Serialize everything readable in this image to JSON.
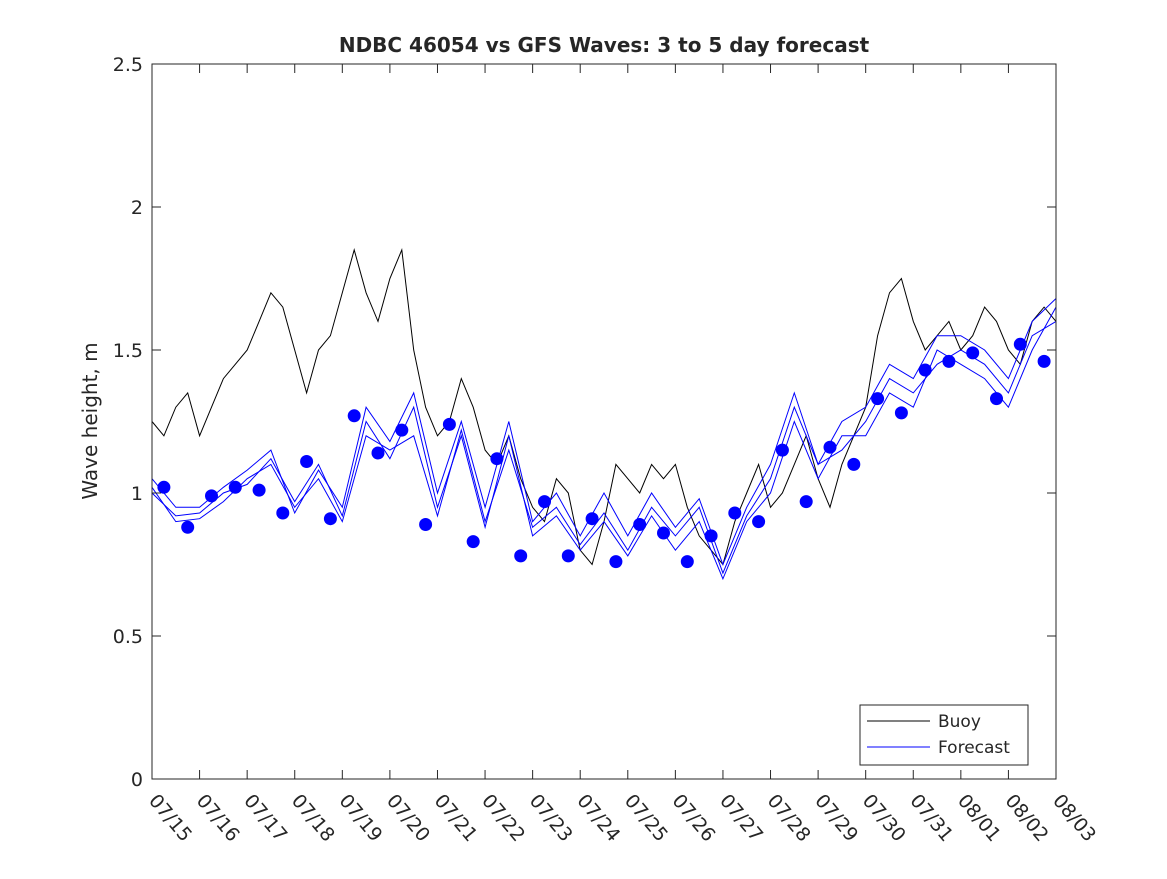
{
  "chart_data": {
    "type": "line",
    "title": "NDBC 46054 vs GFS Waves: 3 to 5 day forecast",
    "xlabel": "",
    "ylabel": "Wave height, m",
    "ylim": [
      0,
      2.5
    ],
    "yticks": [
      0,
      0.5,
      1,
      1.5,
      2,
      2.5
    ],
    "ytick_labels": [
      "0",
      "0.5",
      "1",
      "1.5",
      "2",
      "2.5"
    ],
    "xlim": [
      "2020-07-15",
      "2020-08-03"
    ],
    "xtick_labels": [
      "07/15",
      "07/16",
      "07/17",
      "07/18",
      "07/19",
      "07/20",
      "07/21",
      "07/22",
      "07/23",
      "07/24",
      "07/25",
      "07/26",
      "07/27",
      "07/28",
      "07/29",
      "07/30",
      "07/31",
      "08/01",
      "08/02",
      "08/03"
    ],
    "grid": false,
    "legend_position": "bottom-right",
    "colors": {
      "buoy": "#000000",
      "forecast": "#0000ff"
    },
    "buoy": {
      "name": "Buoy",
      "x": [
        "07/15 00:00",
        "07/15 06:00",
        "07/15 12:00",
        "07/15 18:00",
        "07/16 00:00",
        "07/16 06:00",
        "07/16 12:00",
        "07/16 18:00",
        "07/17 00:00",
        "07/17 06:00",
        "07/17 12:00",
        "07/17 18:00",
        "07/18 00:00",
        "07/18 06:00",
        "07/18 12:00",
        "07/18 18:00",
        "07/19 00:00",
        "07/19 06:00",
        "07/19 12:00",
        "07/19 18:00",
        "07/20 00:00",
        "07/20 06:00",
        "07/20 12:00",
        "07/20 18:00",
        "07/21 00:00",
        "07/21 06:00",
        "07/21 12:00",
        "07/21 18:00",
        "07/22 00:00",
        "07/22 06:00",
        "07/22 12:00",
        "07/22 18:00",
        "07/23 00:00",
        "07/23 06:00",
        "07/23 12:00",
        "07/23 18:00",
        "07/24 00:00",
        "07/24 06:00",
        "07/24 12:00",
        "07/24 18:00",
        "07/25 00:00",
        "07/25 06:00",
        "07/25 12:00",
        "07/25 18:00",
        "07/26 00:00",
        "07/26 06:00",
        "07/26 12:00",
        "07/26 18:00",
        "07/27 00:00",
        "07/27 06:00",
        "07/27 12:00",
        "07/27 18:00",
        "07/28 00:00",
        "07/28 06:00",
        "07/28 12:00",
        "07/28 18:00",
        "07/29 00:00",
        "07/29 06:00",
        "07/29 12:00",
        "07/29 18:00",
        "07/30 00:00",
        "07/30 06:00",
        "07/30 12:00",
        "07/30 18:00",
        "07/31 00:00",
        "07/31 06:00",
        "07/31 12:00",
        "07/31 18:00",
        "08/01 00:00",
        "08/01 06:00",
        "08/01 12:00",
        "08/01 18:00",
        "08/02 00:00",
        "08/02 06:00",
        "08/02 12:00",
        "08/02 18:00",
        "08/03 00:00"
      ],
      "y": [
        1.25,
        1.2,
        1.3,
        1.35,
        1.2,
        1.3,
        1.4,
        1.45,
        1.5,
        1.6,
        1.7,
        1.65,
        1.5,
        1.35,
        1.5,
        1.55,
        1.7,
        1.85,
        1.7,
        1.6,
        1.75,
        1.85,
        1.5,
        1.3,
        1.2,
        1.25,
        1.4,
        1.3,
        1.15,
        1.1,
        1.2,
        1.05,
        0.95,
        0.9,
        1.05,
        1.0,
        0.8,
        0.75,
        0.9,
        1.1,
        1.05,
        1.0,
        1.1,
        1.05,
        1.1,
        0.95,
        0.85,
        0.8,
        0.75,
        0.9,
        1.0,
        1.1,
        0.95,
        1.0,
        1.1,
        1.2,
        1.05,
        0.95,
        1.1,
        1.2,
        1.3,
        1.55,
        1.7,
        1.75,
        1.6,
        1.5,
        1.55,
        1.6,
        1.5,
        1.55,
        1.65,
        1.6,
        1.5,
        1.45,
        1.6,
        1.65,
        1.6
      ]
    },
    "forecast": {
      "name": "Forecast",
      "runs": [
        {
          "x": [
            "07/15 00:00",
            "07/15 12:00",
            "07/16 00:00",
            "07/16 12:00",
            "07/17 00:00",
            "07/17 12:00",
            "07/18 00:00",
            "07/18 12:00",
            "07/19 00:00",
            "07/19 12:00",
            "07/20 00:00",
            "07/20 12:00",
            "07/21 00:00",
            "07/21 12:00",
            "07/22 00:00",
            "07/22 12:00",
            "07/23 00:00",
            "07/23 12:00",
            "07/24 00:00",
            "07/24 12:00",
            "07/25 00:00",
            "07/25 12:00",
            "07/26 00:00",
            "07/26 12:00",
            "07/27 00:00",
            "07/27 12:00",
            "07/28 00:00",
            "07/28 12:00",
            "07/29 00:00",
            "07/29 12:00",
            "07/30 00:00",
            "07/30 12:00",
            "07/31 00:00",
            "07/31 12:00",
            "08/01 00:00",
            "08/01 12:00",
            "08/02 00:00",
            "08/02 12:00",
            "08/03 00:00"
          ],
          "y": [
            1.02,
            0.9,
            0.91,
            0.97,
            1.05,
            1.1,
            0.95,
            1.05,
            0.9,
            1.2,
            1.15,
            1.2,
            0.92,
            1.22,
            0.9,
            1.15,
            0.88,
            0.95,
            0.82,
            0.93,
            0.8,
            0.95,
            0.85,
            0.95,
            0.72,
            0.92,
            1.05,
            1.3,
            1.1,
            1.15,
            1.25,
            1.4,
            1.35,
            1.45,
            1.5,
            1.45,
            1.35,
            1.55,
            1.6
          ]
        },
        {
          "x": [
            "07/15 00:00",
            "07/15 12:00",
            "07/16 00:00",
            "07/16 12:00",
            "07/17 00:00",
            "07/17 12:00",
            "07/18 00:00",
            "07/18 12:00",
            "07/19 00:00",
            "07/19 12:00",
            "07/20 00:00",
            "07/20 12:00",
            "07/21 00:00",
            "07/21 12:00",
            "07/22 00:00",
            "07/22 12:00",
            "07/23 00:00",
            "07/23 12:00",
            "07/24 00:00",
            "07/24 12:00",
            "07/25 00:00",
            "07/25 12:00",
            "07/26 00:00",
            "07/26 12:00",
            "07/27 00:00",
            "07/27 12:00",
            "07/28 00:00",
            "07/28 12:00",
            "07/29 00:00",
            "07/29 12:00",
            "07/30 00:00",
            "07/30 12:00",
            "07/31 00:00",
            "07/31 12:00",
            "08/01 00:00",
            "08/01 12:00",
            "08/02 00:00",
            "08/02 12:00",
            "08/03 00:00"
          ],
          "y": [
            1.0,
            0.92,
            0.93,
            1.0,
            1.03,
            1.12,
            0.97,
            1.1,
            0.92,
            1.25,
            1.12,
            1.3,
            0.95,
            1.2,
            0.88,
            1.2,
            0.85,
            0.92,
            0.8,
            0.9,
            0.78,
            0.92,
            0.8,
            0.9,
            0.7,
            0.9,
            1.0,
            1.25,
            1.05,
            1.2,
            1.2,
            1.35,
            1.3,
            1.5,
            1.45,
            1.4,
            1.3,
            1.5,
            1.65
          ]
        },
        {
          "x": [
            "07/15 00:00",
            "07/15 12:00",
            "07/16 00:00",
            "07/16 12:00",
            "07/17 00:00",
            "07/17 12:00",
            "07/18 00:00",
            "07/18 12:00",
            "07/19 00:00",
            "07/19 12:00",
            "07/20 00:00",
            "07/20 12:00",
            "07/21 00:00",
            "07/21 12:00",
            "07/22 00:00",
            "07/22 12:00",
            "07/23 00:00",
            "07/23 12:00",
            "07/24 00:00",
            "07/24 12:00",
            "07/25 00:00",
            "07/25 12:00",
            "07/26 00:00",
            "07/26 12:00",
            "07/27 00:00",
            "07/27 12:00",
            "07/28 00:00",
            "07/28 12:00",
            "07/29 00:00",
            "07/29 12:00",
            "07/30 00:00",
            "07/30 12:00",
            "07/31 00:00",
            "07/31 12:00",
            "08/01 00:00",
            "08/01 12:00",
            "08/02 00:00",
            "08/02 12:00",
            "08/03 00:00"
          ],
          "y": [
            1.05,
            0.95,
            0.95,
            1.02,
            1.08,
            1.15,
            0.93,
            1.08,
            0.95,
            1.3,
            1.18,
            1.35,
            1.0,
            1.25,
            0.95,
            1.25,
            0.9,
            1.0,
            0.85,
            1.0,
            0.85,
            1.0,
            0.88,
            0.98,
            0.75,
            0.95,
            1.1,
            1.35,
            1.1,
            1.25,
            1.3,
            1.45,
            1.4,
            1.55,
            1.55,
            1.5,
            1.4,
            1.6,
            1.68
          ]
        }
      ]
    },
    "forecast_points": {
      "x": [
        "07/15 06:00",
        "07/15 18:00",
        "07/16 06:00",
        "07/16 18:00",
        "07/17 06:00",
        "07/17 18:00",
        "07/18 06:00",
        "07/18 18:00",
        "07/19 06:00",
        "07/19 18:00",
        "07/20 06:00",
        "07/20 18:00",
        "07/21 06:00",
        "07/21 18:00",
        "07/22 06:00",
        "07/22 18:00",
        "07/23 06:00",
        "07/23 18:00",
        "07/24 06:00",
        "07/24 18:00",
        "07/25 06:00",
        "07/25 18:00",
        "07/26 06:00",
        "07/26 18:00",
        "07/27 06:00",
        "07/27 18:00",
        "07/28 06:00",
        "07/28 18:00",
        "07/29 06:00",
        "07/29 18:00",
        "07/30 06:00",
        "07/30 18:00",
        "07/31 06:00",
        "07/31 18:00",
        "08/01 06:00",
        "08/01 18:00",
        "08/02 06:00",
        "08/02 18:00"
      ],
      "y": [
        1.02,
        0.88,
        0.99,
        1.02,
        1.01,
        0.93,
        1.11,
        0.91,
        1.27,
        1.14,
        1.22,
        0.89,
        1.24,
        0.83,
        1.12,
        0.78,
        0.97,
        0.78,
        0.91,
        0.76,
        0.89,
        0.86,
        0.76,
        0.85,
        0.93,
        0.9,
        1.15,
        0.97,
        1.16,
        1.1,
        1.33,
        1.28,
        1.43,
        1.46,
        1.49,
        1.33,
        1.52,
        1.46
      ]
    }
  }
}
